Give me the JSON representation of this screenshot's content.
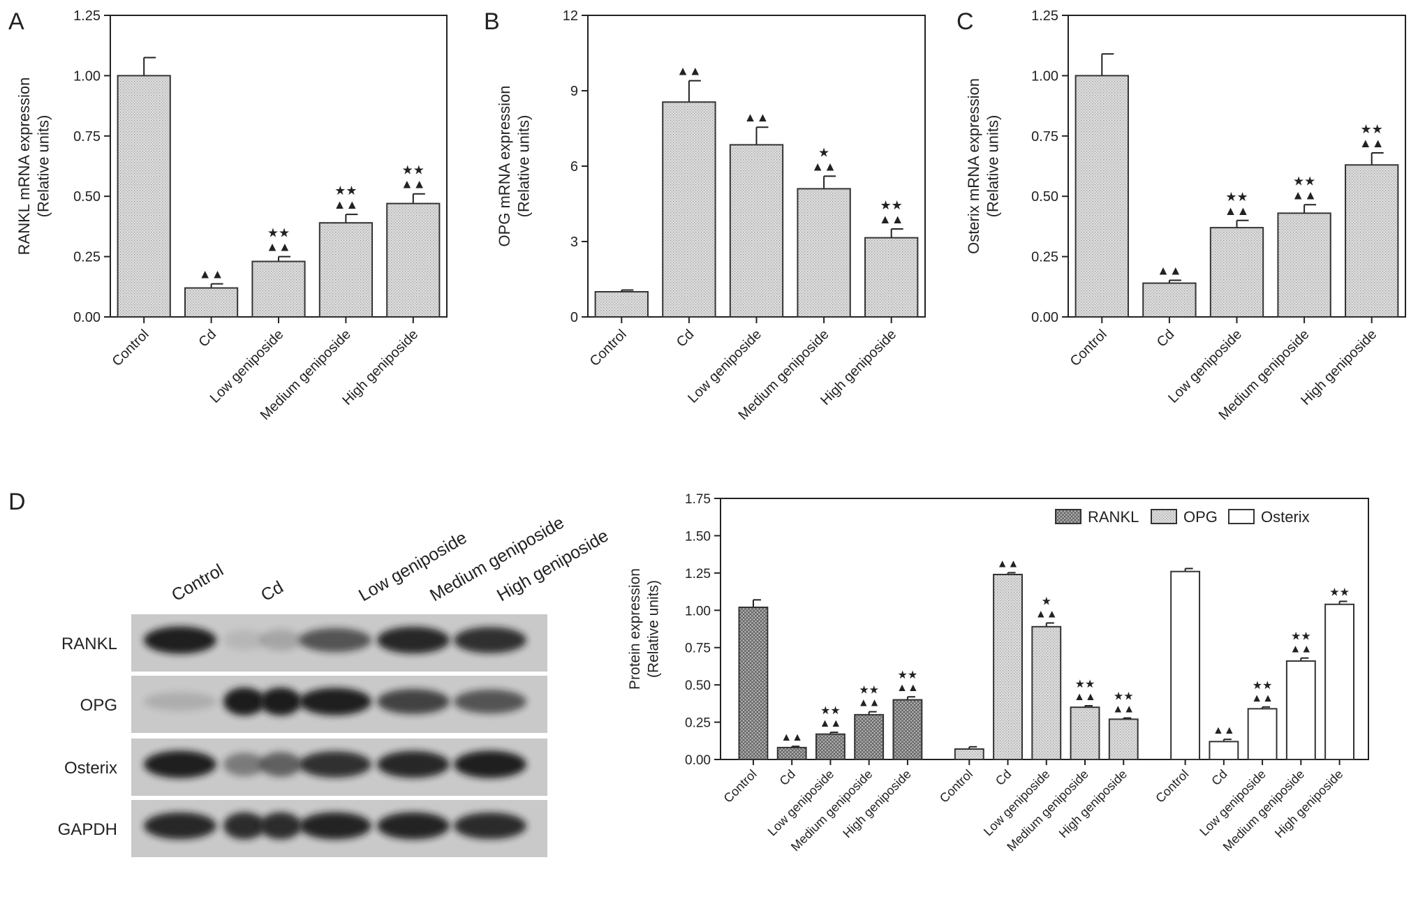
{
  "panels": {
    "A": {
      "letter": "A"
    },
    "B": {
      "letter": "B"
    },
    "C": {
      "letter": "C"
    },
    "D": {
      "letter": "D"
    }
  },
  "marker_glyphs": {
    "triangle": "▲",
    "star": "★"
  },
  "chart_data": [
    {
      "id": "A",
      "type": "bar",
      "ylabel": [
        "RANKL mRNA expression",
        "(Relative units)"
      ],
      "categories": [
        "Control",
        "Cd",
        "Low geniposide",
        "Medium geniposide",
        "High geniposide"
      ],
      "values": [
        1.0,
        0.12,
        0.23,
        0.39,
        0.47
      ],
      "errors": [
        0.075,
        0.017,
        0.02,
        0.035,
        0.04
      ],
      "ylim": [
        0,
        1.25
      ],
      "yticks": [
        0,
        0.25,
        0.5,
        0.75,
        1.0,
        1.25
      ],
      "ytick_labels": [
        "0.00",
        "0.25",
        "0.50",
        "0.75",
        "1.00",
        "1.25"
      ],
      "markers": [
        {
          "stars": 0,
          "tris": 0
        },
        {
          "stars": 0,
          "tris": 2
        },
        {
          "stars": 2,
          "tris": 2
        },
        {
          "stars": 2,
          "tris": 2
        },
        {
          "stars": 2,
          "tris": 2
        }
      ],
      "fill": "dots"
    },
    {
      "id": "B",
      "type": "bar",
      "ylabel": [
        "OPG mRNA expression",
        "(Relative units)"
      ],
      "categories": [
        "Control",
        "Cd",
        "Low geniposide",
        "Medium geniposide",
        "High geniposide"
      ],
      "values": [
        1.0,
        8.55,
        6.85,
        5.1,
        3.15
      ],
      "errors": [
        0.07,
        0.85,
        0.7,
        0.5,
        0.35
      ],
      "ylim": [
        0,
        12
      ],
      "yticks": [
        0,
        3,
        6,
        9,
        12
      ],
      "ytick_labels": [
        "0",
        "3",
        "6",
        "9",
        "12"
      ],
      "markers": [
        {
          "stars": 0,
          "tris": 0
        },
        {
          "stars": 0,
          "tris": 2
        },
        {
          "stars": 0,
          "tris": 2
        },
        {
          "stars": 1,
          "tris": 2
        },
        {
          "stars": 2,
          "tris": 2
        }
      ],
      "fill": "dots"
    },
    {
      "id": "C",
      "type": "bar",
      "ylabel": [
        "Osterix mRNA expression",
        "(Relative units)"
      ],
      "categories": [
        "Control",
        "Cd",
        "Low geniposide",
        "Medium geniposide",
        "High geniposide"
      ],
      "values": [
        1.0,
        0.14,
        0.37,
        0.43,
        0.63
      ],
      "errors": [
        0.09,
        0.012,
        0.03,
        0.035,
        0.05
      ],
      "ylim": [
        0,
        1.25
      ],
      "yticks": [
        0,
        0.25,
        0.5,
        0.75,
        1.0,
        1.25
      ],
      "ytick_labels": [
        "0.00",
        "0.25",
        "0.50",
        "0.75",
        "1.00",
        "1.25"
      ],
      "markers": [
        {
          "stars": 0,
          "tris": 0
        },
        {
          "stars": 0,
          "tris": 2
        },
        {
          "stars": 2,
          "tris": 2
        },
        {
          "stars": 2,
          "tris": 2
        },
        {
          "stars": 2,
          "tris": 2
        }
      ],
      "fill": "dots"
    },
    {
      "id": "D",
      "type": "bar",
      "ylabel": [
        "Protein expression",
        "(Relative units)"
      ],
      "categories": [
        "Control",
        "Cd",
        "Low geniposide",
        "Medium geniposide",
        "High geniposide"
      ],
      "ylim": [
        0,
        1.75
      ],
      "yticks": [
        0,
        0.25,
        0.5,
        0.75,
        1.0,
        1.25,
        1.5,
        1.75
      ],
      "ytick_labels": [
        "0.00",
        "0.25",
        "0.50",
        "0.75",
        "1.00",
        "1.25",
        "1.50",
        "1.75"
      ],
      "legend_position": "top-right",
      "series": [
        {
          "name": "RANKL",
          "fill": "cross",
          "values": [
            1.02,
            0.08,
            0.17,
            0.3,
            0.4
          ],
          "errors": [
            0.05,
            0.008,
            0.012,
            0.02,
            0.02
          ],
          "markers": [
            {
              "stars": 0,
              "tris": 0
            },
            {
              "stars": 0,
              "tris": 2
            },
            {
              "stars": 2,
              "tris": 2
            },
            {
              "stars": 2,
              "tris": 2
            },
            {
              "stars": 2,
              "tris": 2
            }
          ]
        },
        {
          "name": "OPG",
          "fill": "dots",
          "values": [
            0.07,
            1.24,
            0.89,
            0.35,
            0.27
          ],
          "errors": [
            0.015,
            0.012,
            0.025,
            0.01,
            0.008
          ],
          "markers": [
            {
              "stars": 0,
              "tris": 0
            },
            {
              "stars": 0,
              "tris": 2
            },
            {
              "stars": 1,
              "tris": 2
            },
            {
              "stars": 2,
              "tris": 2
            },
            {
              "stars": 2,
              "tris": 2
            }
          ]
        },
        {
          "name": "Osterix",
          "fill": "white",
          "values": [
            1.26,
            0.12,
            0.34,
            0.66,
            1.04
          ],
          "errors": [
            0.02,
            0.015,
            0.012,
            0.02,
            0.02
          ],
          "markers": [
            {
              "stars": 0,
              "tris": 0
            },
            {
              "stars": 0,
              "tris": 2
            },
            {
              "stars": 2,
              "tris": 2
            },
            {
              "stars": 2,
              "tris": 2
            },
            {
              "stars": 2,
              "tris": 0
            }
          ]
        }
      ]
    }
  ],
  "western_blot": {
    "lane_labels": [
      "Control",
      "Cd",
      "Low  geniposide",
      "Medium  geniposide",
      "High geniposide"
    ],
    "rows": [
      {
        "label": "RANKL",
        "intensities": [
          0.95,
          0.12,
          0.65,
          0.9,
          0.85
        ],
        "cd_split": [
          0.1,
          0.2
        ]
      },
      {
        "label": "OPG",
        "intensities": [
          0.15,
          1.0,
          0.95,
          0.75,
          0.65
        ],
        "cd_split": [
          1.0,
          1.0
        ]
      },
      {
        "label": "Osterix",
        "intensities": [
          0.95,
          0.45,
          0.85,
          0.9,
          0.95
        ],
        "cd_split": [
          0.45,
          0.6
        ]
      },
      {
        "label": "GAPDH",
        "intensities": [
          0.9,
          0.9,
          0.92,
          0.92,
          0.88
        ],
        "cd_split": [
          0.9,
          0.9
        ]
      }
    ]
  }
}
